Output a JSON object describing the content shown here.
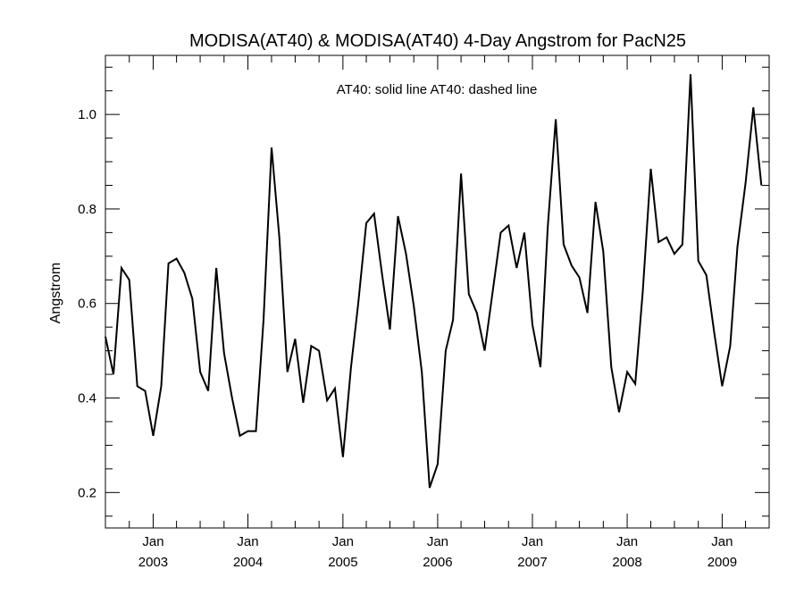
{
  "chart_data": {
    "type": "line",
    "title": "MODISA(AT40) & MODISA(AT40) 4-Day Angstrom for PacN25",
    "legend_text": "AT40: solid line   AT40: dashed line",
    "legend_position": "top-center",
    "xlabel": "",
    "ylabel": "Angstrom",
    "xlim": [
      "2002-07-01",
      "2009-07-01"
    ],
    "ylim": [
      0.125,
      1.125
    ],
    "grid": false,
    "y_ticks": [
      {
        "value": 0.2,
        "label": "0.2"
      },
      {
        "value": 0.4,
        "label": "0.4"
      },
      {
        "value": 0.6,
        "label": "0.6"
      },
      {
        "value": 0.8,
        "label": "0.8"
      },
      {
        "value": 1.0,
        "label": "1.0"
      }
    ],
    "x_ticks": [
      {
        "date": "2003-01-01",
        "month": "Jan",
        "year": "2003"
      },
      {
        "date": "2004-01-01",
        "month": "Jan",
        "year": "2004"
      },
      {
        "date": "2005-01-01",
        "month": "Jan",
        "year": "2005"
      },
      {
        "date": "2006-01-01",
        "month": "Jan",
        "year": "2006"
      },
      {
        "date": "2007-01-01",
        "month": "Jan",
        "year": "2007"
      },
      {
        "date": "2008-01-01",
        "month": "Jan",
        "year": "2008"
      },
      {
        "date": "2009-01-01",
        "month": "Jan",
        "year": "2009"
      }
    ],
    "series": [
      {
        "line_style": "solid",
        "color": "#000000",
        "points": [
          [
            "2002-07-01",
            0.53
          ],
          [
            "2002-08-01",
            0.45
          ],
          [
            "2002-09-01",
            0.675
          ],
          [
            "2002-10-01",
            0.65
          ],
          [
            "2002-11-01",
            0.425
          ],
          [
            "2002-12-01",
            0.415
          ],
          [
            "2003-01-01",
            0.32
          ],
          [
            "2003-02-01",
            0.425
          ],
          [
            "2003-03-01",
            0.685
          ],
          [
            "2003-04-01",
            0.695
          ],
          [
            "2003-05-01",
            0.665
          ],
          [
            "2003-06-01",
            0.61
          ],
          [
            "2003-07-01",
            0.455
          ],
          [
            "2003-08-01",
            0.415
          ],
          [
            "2003-09-01",
            0.675
          ],
          [
            "2003-10-01",
            0.495
          ],
          [
            "2003-11-01",
            0.4
          ],
          [
            "2003-12-01",
            0.32
          ],
          [
            "2004-01-01",
            0.33
          ],
          [
            "2004-02-01",
            0.33
          ],
          [
            "2004-03-01",
            0.565
          ],
          [
            "2004-04-01",
            0.93
          ],
          [
            "2004-05-01",
            0.74
          ],
          [
            "2004-06-01",
            0.455
          ],
          [
            "2004-07-01",
            0.525
          ],
          [
            "2004-08-01",
            0.39
          ],
          [
            "2004-09-01",
            0.51
          ],
          [
            "2004-10-01",
            0.5
          ],
          [
            "2004-11-01",
            0.395
          ],
          [
            "2004-12-01",
            0.42
          ],
          [
            "2005-01-01",
            0.275
          ],
          [
            "2005-02-01",
            0.465
          ],
          [
            "2005-03-01",
            0.6
          ],
          [
            "2005-04-01",
            0.77
          ],
          [
            "2005-05-01",
            0.79
          ],
          [
            "2005-06-01",
            0.66
          ],
          [
            "2005-07-01",
            0.545
          ],
          [
            "2005-08-01",
            0.785
          ],
          [
            "2005-09-01",
            0.705
          ],
          [
            "2005-10-01",
            0.595
          ],
          [
            "2005-11-01",
            0.455
          ],
          [
            "2005-12-01",
            0.21
          ],
          [
            "2006-01-01",
            0.26
          ],
          [
            "2006-02-01",
            0.5
          ],
          [
            "2006-03-01",
            0.565
          ],
          [
            "2006-04-01",
            0.875
          ],
          [
            "2006-05-01",
            0.62
          ],
          [
            "2006-06-01",
            0.58
          ],
          [
            "2006-07-01",
            0.5
          ],
          [
            "2006-08-01",
            0.625
          ],
          [
            "2006-09-01",
            0.75
          ],
          [
            "2006-10-01",
            0.765
          ],
          [
            "2006-11-01",
            0.675
          ],
          [
            "2006-12-01",
            0.75
          ],
          [
            "2007-01-01",
            0.555
          ],
          [
            "2007-02-01",
            0.465
          ],
          [
            "2007-03-01",
            0.76
          ],
          [
            "2007-04-01",
            0.99
          ],
          [
            "2007-05-01",
            0.725
          ],
          [
            "2007-06-01",
            0.68
          ],
          [
            "2007-07-01",
            0.655
          ],
          [
            "2007-08-01",
            0.58
          ],
          [
            "2007-09-01",
            0.815
          ],
          [
            "2007-10-01",
            0.71
          ],
          [
            "2007-11-01",
            0.465
          ],
          [
            "2007-12-01",
            0.37
          ],
          [
            "2008-01-01",
            0.455
          ],
          [
            "2008-02-01",
            0.43
          ],
          [
            "2008-03-01",
            0.625
          ],
          [
            "2008-04-01",
            0.885
          ],
          [
            "2008-05-01",
            0.73
          ],
          [
            "2008-06-01",
            0.74
          ],
          [
            "2008-07-01",
            0.705
          ],
          [
            "2008-08-01",
            0.725
          ],
          [
            "2008-09-01",
            1.085
          ],
          [
            "2008-10-01",
            0.69
          ],
          [
            "2008-11-01",
            0.66
          ],
          [
            "2008-12-01",
            0.54
          ],
          [
            "2009-01-01",
            0.425
          ],
          [
            "2009-02-01",
            0.51
          ],
          [
            "2009-03-01",
            0.72
          ],
          [
            "2009-04-01",
            0.855
          ],
          [
            "2009-05-01",
            1.015
          ],
          [
            "2009-06-01",
            0.85
          ]
        ]
      }
    ]
  }
}
